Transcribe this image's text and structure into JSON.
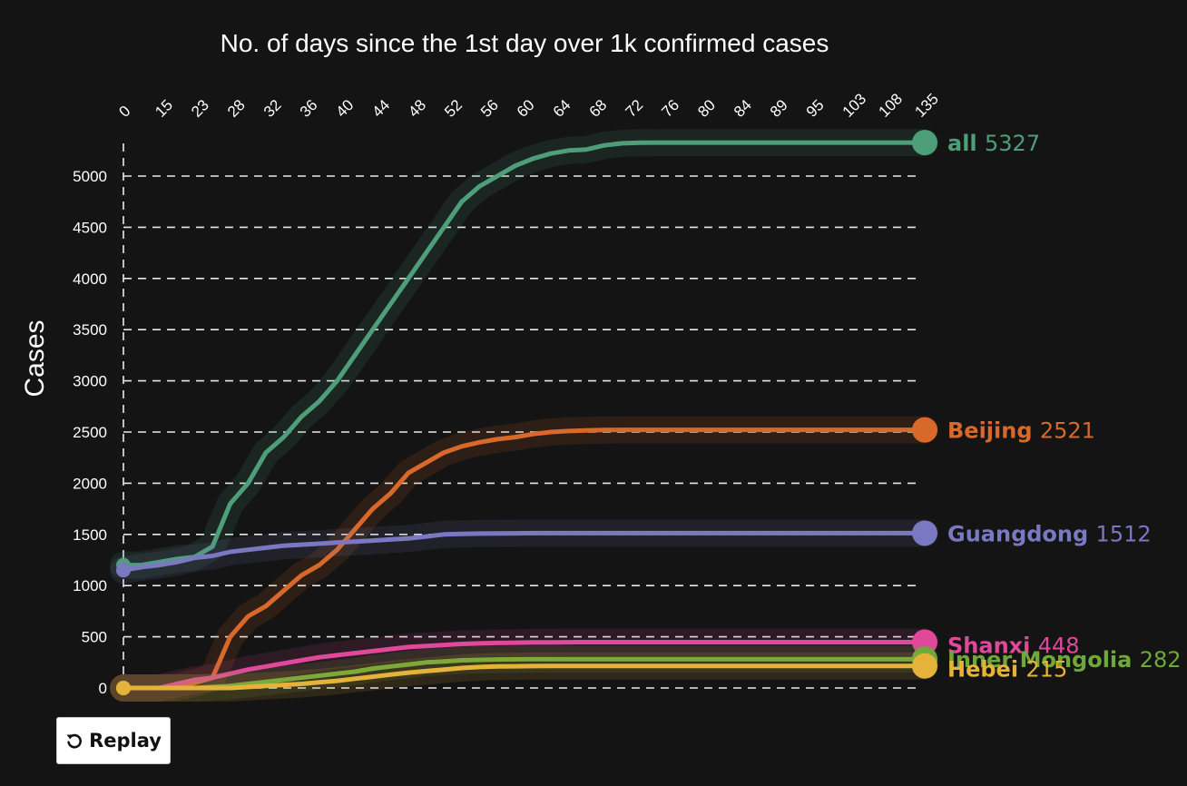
{
  "chart_data": {
    "type": "line",
    "title": "No. of days since the 1st day over 1k confirmed cases",
    "ylabel": "Cases",
    "xlabel": "",
    "x_tick_labels": [
      "0",
      "15",
      "23",
      "28",
      "32",
      "36",
      "40",
      "44",
      "48",
      "52",
      "56",
      "60",
      "64",
      "68",
      "72",
      "76",
      "80",
      "84",
      "89",
      "95",
      "103",
      "108",
      "135"
    ],
    "y_ticks": [
      0,
      500,
      1000,
      1500,
      2000,
      2500,
      3000,
      3500,
      4000,
      4500,
      5000
    ],
    "ylim": [
      0,
      5327
    ],
    "grid": true,
    "legend": "end-of-line labels",
    "series": [
      {
        "name": "all",
        "color": "#4e9e7a",
        "final": 5327,
        "values": [
          1200,
          1200,
          1230,
          1260,
          1280,
          1380,
          1800,
          2000,
          2300,
          2450,
          2650,
          2800,
          3000,
          3250,
          3500,
          3750,
          4000,
          4250,
          4500,
          4750,
          4900,
          5000,
          5100,
          5170,
          5220,
          5250,
          5260,
          5300,
          5320,
          5326,
          5327,
          5327,
          5327,
          5327,
          5327,
          5327,
          5327,
          5327,
          5327,
          5327,
          5327,
          5327,
          5327,
          5327,
          5327,
          5327
        ]
      },
      {
        "name": "Beijing",
        "color": "#d9692a",
        "final": 2521,
        "values": [
          0,
          0,
          0,
          10,
          50,
          100,
          500,
          700,
          800,
          950,
          1100,
          1200,
          1350,
          1550,
          1750,
          1900,
          2100,
          2200,
          2300,
          2360,
          2400,
          2430,
          2450,
          2480,
          2500,
          2510,
          2515,
          2520,
          2521,
          2521,
          2521,
          2521,
          2521,
          2521,
          2521,
          2521,
          2521,
          2521,
          2521,
          2521,
          2521,
          2521,
          2521,
          2521,
          2521,
          2521
        ]
      },
      {
        "name": "Guangdong",
        "color": "#7b78c2",
        "final": 1512,
        "values": [
          1150,
          1180,
          1200,
          1230,
          1270,
          1290,
          1330,
          1350,
          1370,
          1390,
          1400,
          1410,
          1420,
          1430,
          1440,
          1450,
          1460,
          1480,
          1500,
          1505,
          1508,
          1510,
          1511,
          1512,
          1512,
          1512,
          1512,
          1512,
          1512,
          1512,
          1512,
          1512,
          1512,
          1512,
          1512,
          1512,
          1512,
          1512,
          1512,
          1512,
          1512,
          1512,
          1512,
          1512,
          1512,
          1512
        ]
      },
      {
        "name": "Shanxi",
        "color": "#e0489a",
        "final": 448,
        "values": [
          0,
          0,
          0,
          40,
          80,
          100,
          140,
          180,
          210,
          240,
          270,
          300,
          320,
          340,
          360,
          380,
          400,
          410,
          420,
          430,
          435,
          440,
          442,
          445,
          446,
          447,
          448,
          448,
          448,
          448,
          448,
          448,
          448,
          448,
          448,
          448,
          448,
          448,
          448,
          448,
          448,
          448,
          448,
          448,
          448,
          448
        ]
      },
      {
        "name": "Inner Mongolia",
        "color": "#6fa83a",
        "final": 282,
        "values": [
          0,
          0,
          0,
          0,
          0,
          10,
          20,
          40,
          60,
          80,
          100,
          120,
          140,
          160,
          190,
          210,
          230,
          250,
          260,
          270,
          275,
          278,
          280,
          281,
          282,
          282,
          282,
          282,
          282,
          282,
          282,
          282,
          282,
          282,
          282,
          282,
          282,
          282,
          282,
          282,
          282,
          282,
          282,
          282,
          282,
          282
        ]
      },
      {
        "name": "Hebei",
        "color": "#e6b33a",
        "final": 215,
        "values": [
          0,
          0,
          0,
          0,
          0,
          0,
          0,
          10,
          20,
          30,
          40,
          55,
          70,
          90,
          110,
          130,
          150,
          165,
          180,
          195,
          205,
          210,
          212,
          214,
          215,
          215,
          215,
          215,
          215,
          215,
          215,
          215,
          215,
          215,
          215,
          215,
          215,
          215,
          215,
          215,
          215,
          215,
          215,
          215,
          215,
          215
        ]
      }
    ]
  },
  "controls": {
    "replay_label": "Replay"
  }
}
